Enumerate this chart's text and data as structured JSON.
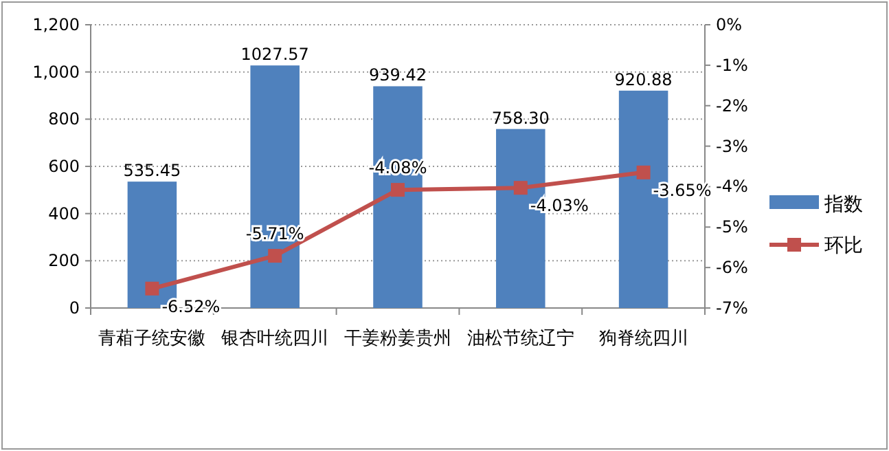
{
  "chart_data": {
    "type": "bar",
    "categories": [
      "青葙子统安徽",
      "银杏叶统四川",
      "干姜粉姜贵州",
      "油松节统辽宁",
      "狗脊统四川"
    ],
    "series": [
      {
        "name": "指数",
        "color": "#4f81bd",
        "values": [
          535.45,
          1027.57,
          939.42,
          758.3,
          920.88
        ],
        "value_labels": [
          "535.45",
          "1027.57",
          "939.42",
          "758.30",
          "920.88"
        ]
      },
      {
        "name": "环比",
        "type": "line",
        "axis": "y2",
        "color": "#c0504d",
        "marker": "square",
        "values": [
          -6.52,
          -5.71,
          -4.08,
          -4.03,
          -3.65
        ],
        "value_labels": [
          "-6.52%",
          "-5.71%",
          "-4.08%",
          "-4.03%",
          "-3.65%"
        ]
      }
    ],
    "ylim": [
      0,
      1200
    ],
    "yticks": [
      0,
      {
        "value": 200,
        "label": "200"
      },
      {
        "value": 400,
        "label": "400"
      },
      {
        "value": 600,
        "label": "600"
      },
      {
        "value": 800,
        "label": "800"
      },
      {
        "value": 1000,
        "label": "1,000"
      },
      {
        "value": 1200,
        "label": "1,200"
      }
    ],
    "y2lim": [
      -7,
      0
    ],
    "y2ticks": [
      {
        "value": -7,
        "label": "-7%"
      },
      {
        "value": -6,
        "label": "-6%"
      },
      {
        "value": -5,
        "label": "-5%"
      },
      {
        "value": -4,
        "label": "-4%"
      },
      {
        "value": -3,
        "label": "-3%"
      },
      {
        "value": -2,
        "label": "-2%"
      },
      {
        "value": -1,
        "label": "-1%"
      },
      {
        "value": 0,
        "label": "0%"
      }
    ],
    "grid": "y",
    "legend": "right"
  }
}
